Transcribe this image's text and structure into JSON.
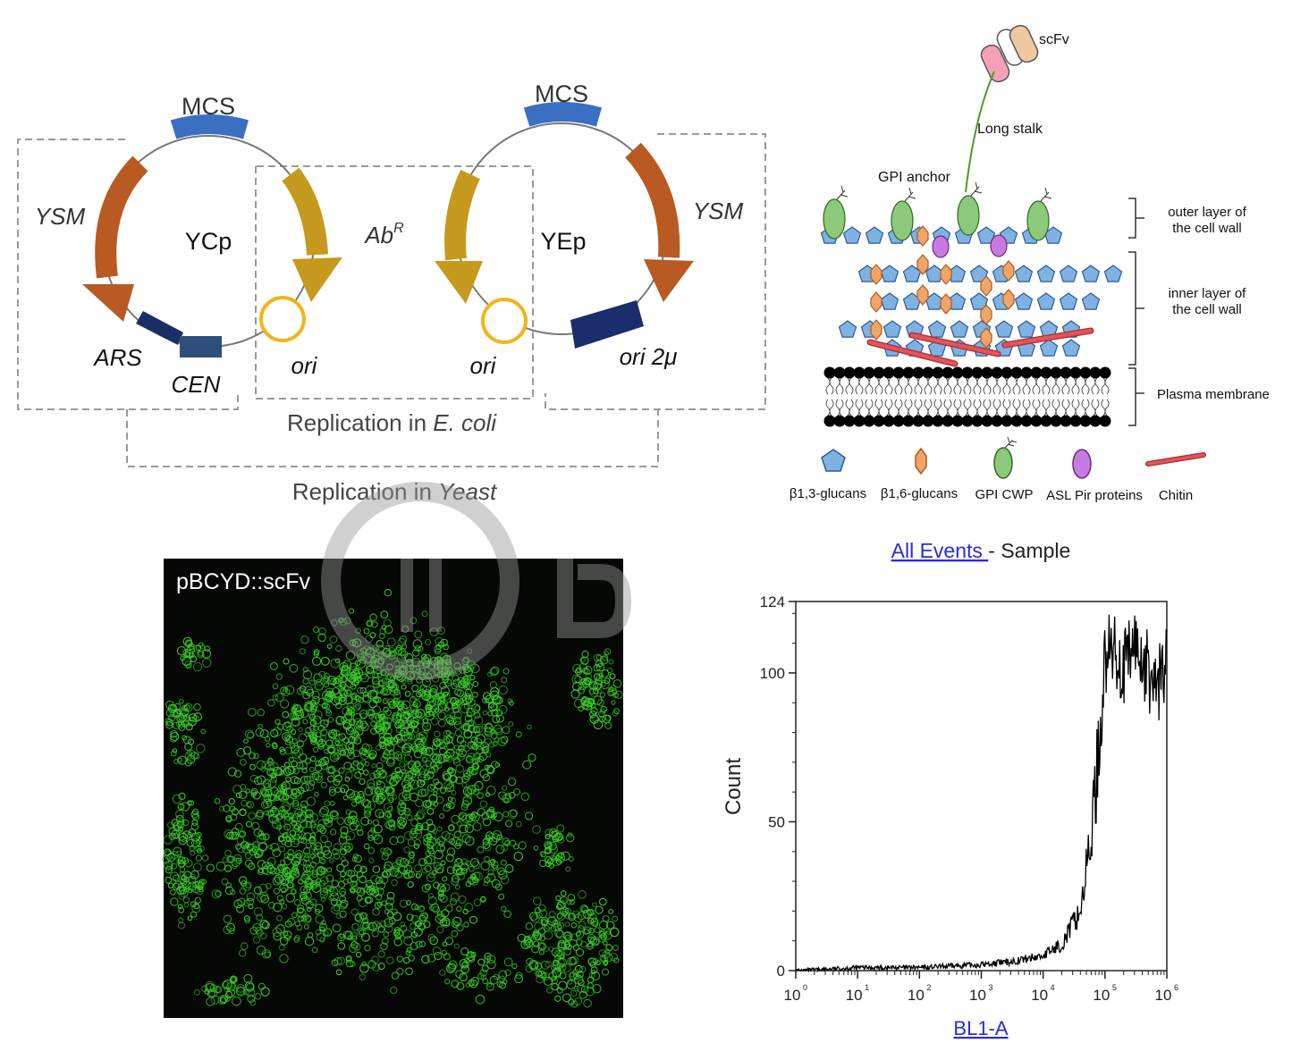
{
  "plasmids": {
    "ycp": {
      "name": "YCp",
      "mcs": "MCS",
      "ysm": "YSM",
      "ars": "ARS",
      "cen": "CEN",
      "ori": "ori"
    },
    "yep": {
      "name": "YEp",
      "mcs": "MCS",
      "ysm": "YSM",
      "ori": "ori",
      "ori2mu": "ori 2μ"
    },
    "abr_base": "Ab",
    "abr_sup": "R",
    "replication_ecoli_prefix": "Replication in ",
    "replication_ecoli_organism": "E. coli",
    "replication_yeast_prefix": "Replication in ",
    "replication_yeast_organism": "Yeast",
    "colors": {
      "mcs": "#3a6fc2",
      "ysm": "#b85a22",
      "abr": "#c59a1e",
      "ori": "#f0b51c",
      "ars": "#1a2e66",
      "cen": "#2e4f7c",
      "ori2mu": "#1b2d6b",
      "dash": "#999999"
    }
  },
  "cellwall": {
    "scfv": "scFv",
    "long_stalk": "Long stalk",
    "gpi_anchor": "GPI anchor",
    "outer_layer_line1": "outer layer of",
    "outer_layer_line2": "the cell wall",
    "inner_layer_line1": "inner layer of",
    "inner_layer_line2": "the cell wall",
    "plasma_membrane": "Plasma membrane",
    "legend": {
      "b13": "β1,3-glucans",
      "b16": "β1,6-glucans",
      "gpi": "GPI CWP",
      "asl": "ASL Pir proteins",
      "chitin": "Chitin"
    },
    "colors": {
      "b13": "#7fb2e0",
      "b16": "#f0a56a",
      "gpi": "#8cc97a",
      "asl": "#c97ae0",
      "chitin": "#e0555a"
    }
  },
  "micrograph": {
    "label": "pBCYD::scFv",
    "colors": {
      "background": "#050805",
      "cells": "#3ccc2a"
    }
  },
  "flow": {
    "title_link": "All Events ",
    "title_rest": " - Sample",
    "xlabel": "BL1-A",
    "ylabel": "Count",
    "y_ticks": [
      "0",
      "50",
      "100",
      "124"
    ],
    "x_tick_base": "10",
    "x_tick_exps": [
      "0",
      "1",
      "2",
      "3",
      "4",
      "5",
      "6"
    ]
  },
  "chart_data": {
    "type": "line",
    "title": "All Events - Sample",
    "xlabel": "BL1-A",
    "ylabel": "Count",
    "xscale": "log",
    "xlim": [
      1,
      1000000
    ],
    "ylim": [
      0,
      124
    ],
    "series": [
      {
        "x": [
          1,
          10,
          100,
          1000,
          3000,
          10000,
          20000,
          40000,
          60000,
          80000,
          100000,
          150000,
          200000,
          300000,
          500000,
          700000,
          1000000
        ],
        "y": [
          0,
          1,
          1,
          2,
          3,
          5,
          9,
          20,
          45,
          75,
          105,
          108,
          100,
          110,
          100,
          95,
          105
        ]
      }
    ]
  }
}
